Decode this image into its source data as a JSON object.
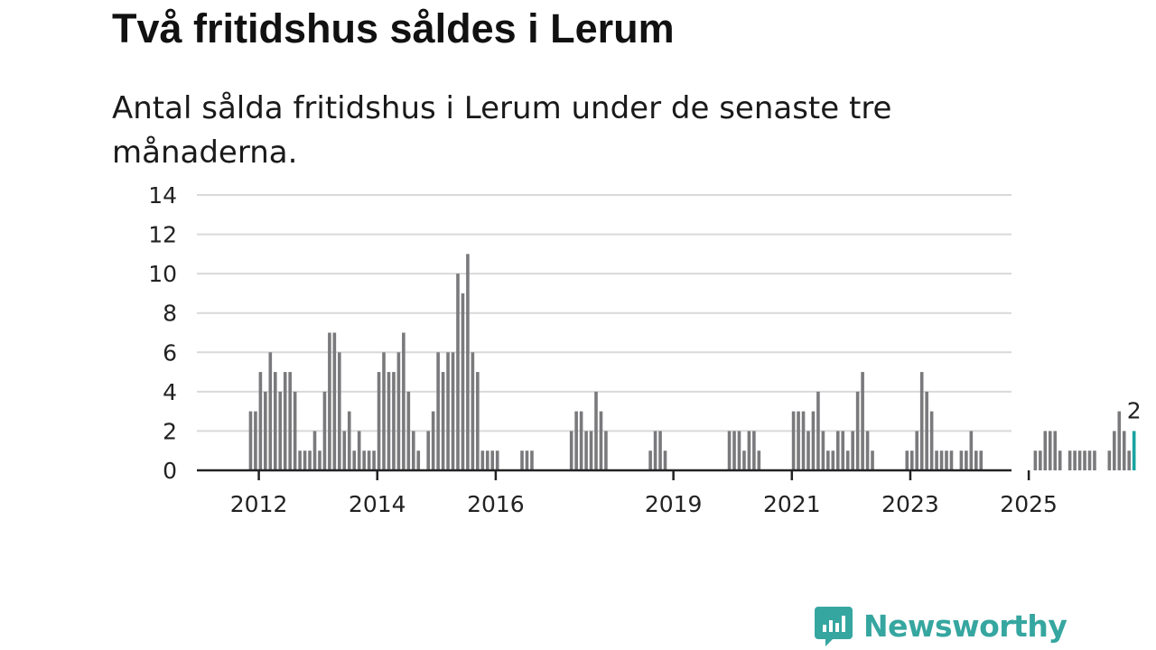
{
  "header": {
    "title": "Två fritidshus såldes i Lerum",
    "subtitle": "Antal sålda fritidshus i Lerum under de senaste tre månaderna."
  },
  "brand": {
    "name": "Newsworthy",
    "color": "#36a6a0"
  },
  "colors": {
    "bar": "#7a797c",
    "highlight": "#19a4a0"
  },
  "chart_data": {
    "type": "bar",
    "title": "Två fritidshus såldes i Lerum",
    "subtitle": "Antal sålda fritidshus i Lerum under de senaste tre månaderna.",
    "xlabel": "",
    "ylabel": "",
    "ylim": [
      0,
      14
    ],
    "yticks": [
      0,
      2,
      4,
      6,
      8,
      10,
      12,
      14
    ],
    "xticks": [
      "2012",
      "2014",
      "2016",
      "2019",
      "2021",
      "2023",
      "2025"
    ],
    "start_period": "2011-01",
    "grid": true,
    "values": [
      0,
      0,
      0,
      0,
      0,
      0,
      0,
      0,
      0,
      0,
      3,
      3,
      5,
      4,
      6,
      5,
      4,
      5,
      5,
      4,
      1,
      1,
      1,
      2,
      1,
      4,
      7,
      7,
      6,
      2,
      3,
      1,
      2,
      1,
      1,
      1,
      5,
      6,
      5,
      5,
      6,
      7,
      4,
      2,
      1,
      0,
      2,
      3,
      6,
      5,
      6,
      6,
      10,
      9,
      11,
      6,
      5,
      1,
      1,
      1,
      1,
      0,
      0,
      0,
      0,
      1,
      1,
      1,
      0,
      0,
      0,
      0,
      0,
      0,
      0,
      2,
      3,
      3,
      2,
      2,
      4,
      3,
      2,
      0,
      0,
      0,
      0,
      0,
      0,
      0,
      0,
      1,
      2,
      2,
      1,
      0,
      0,
      0,
      0,
      0,
      0,
      0,
      0,
      0,
      0,
      0,
      0,
      2,
      2,
      2,
      1,
      2,
      2,
      1,
      0,
      0,
      0,
      0,
      0,
      0,
      3,
      3,
      3,
      2,
      3,
      4,
      2,
      1,
      1,
      2,
      2,
      1,
      2,
      4,
      5,
      2,
      1,
      0,
      0,
      0,
      0,
      0,
      0,
      1,
      1,
      2,
      5,
      4,
      3,
      1,
      1,
      1,
      1,
      0,
      1,
      1,
      2,
      1,
      1,
      0,
      0,
      0,
      0,
      0,
      0,
      0,
      0,
      0,
      0,
      1,
      1,
      2,
      2,
      2,
      1,
      0,
      1,
      1,
      1,
      1,
      1,
      1,
      0,
      0,
      1,
      2,
      3,
      2,
      1,
      2
    ],
    "highlight_last": true,
    "last_value_label": "2"
  }
}
